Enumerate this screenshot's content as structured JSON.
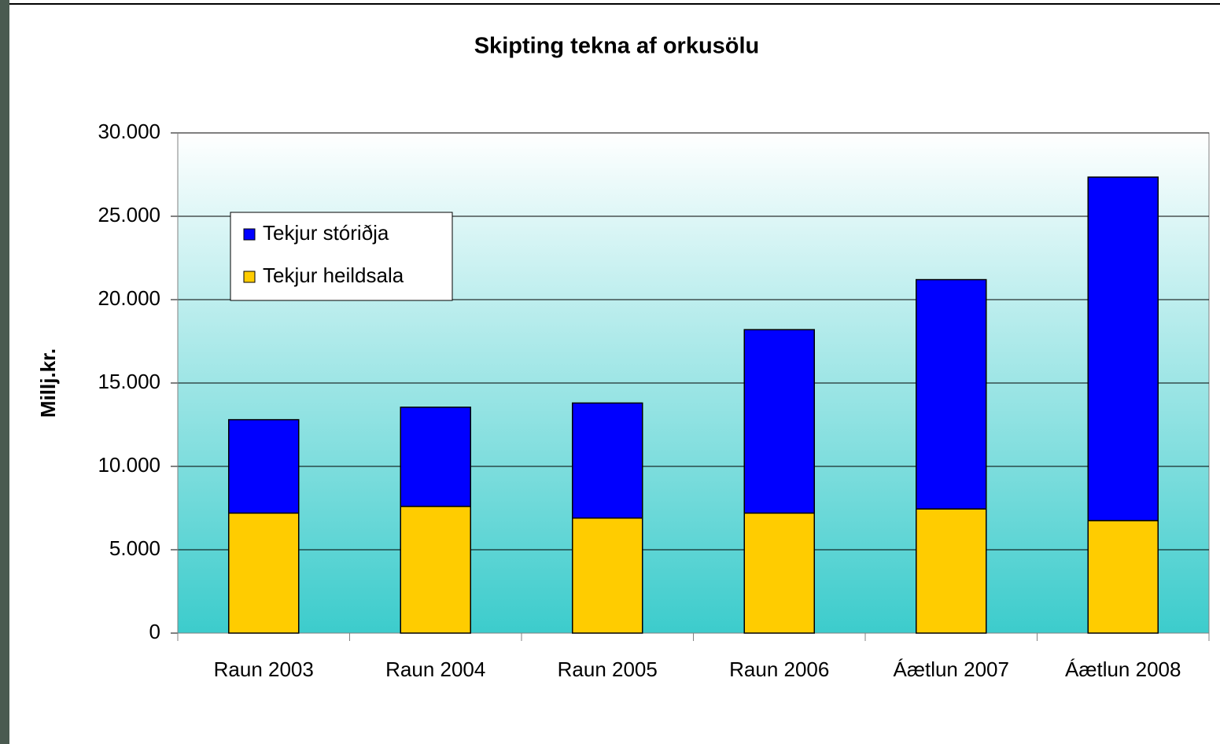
{
  "chart_data": {
    "type": "stacked_bar",
    "title": "Skipting tekna af orkusölu",
    "y_label": "Millj.kr.",
    "categories": [
      "Raun 2003",
      "Raun 2004",
      "Raun 2005",
      "Raun 2006",
      "Áætlun 2007",
      "Áætlun 2008"
    ],
    "series": [
      {
        "name": "Tekjur heildsala",
        "color": "#ffcc00",
        "values": [
          7200,
          7600,
          6900,
          7200,
          7450,
          6750
        ]
      },
      {
        "name": "Tekjur stóriðja",
        "color": "#0000ff",
        "values": [
          5600,
          5950,
          6900,
          11000,
          13750,
          20600
        ]
      }
    ],
    "ylim": [
      0,
      30000
    ],
    "yticks": [
      0,
      {
        "value": 5000,
        "label": "5.000"
      },
      {
        "value": 10000,
        "label": "10.000"
      },
      {
        "value": 15000,
        "label": "15.000"
      },
      {
        "value": 20000,
        "label": "20.000"
      },
      {
        "value": 25000,
        "label": "25.000"
      },
      {
        "value": 30000,
        "label": "30.000"
      }
    ],
    "grid": true,
    "legend": "upper-left"
  }
}
